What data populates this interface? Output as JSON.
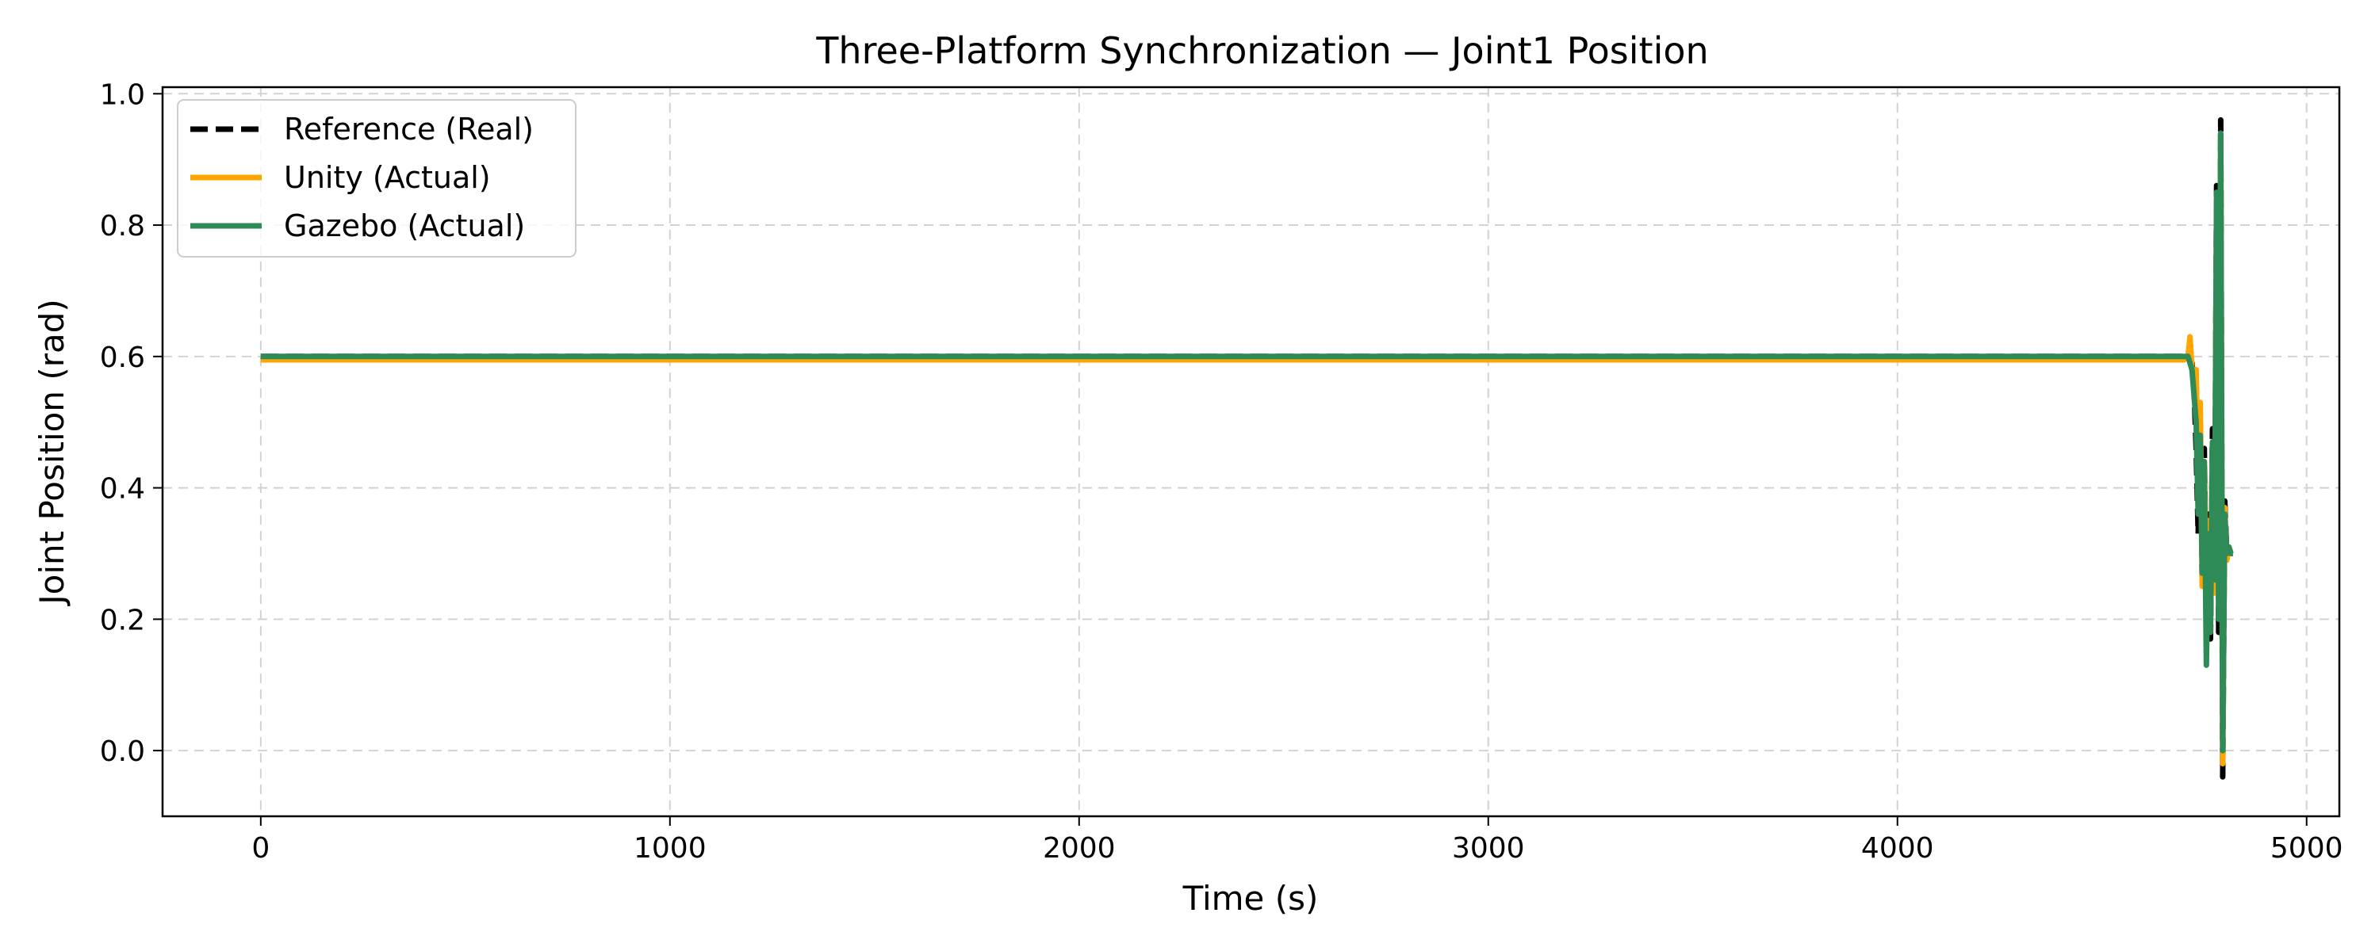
{
  "chart_data": {
    "type": "line",
    "title": "Three-Platform Synchronization — Joint1 Position",
    "xlabel": "Time (s)",
    "ylabel": "Joint Position (rad)",
    "xlim": [
      -240,
      5080
    ],
    "ylim": [
      -0.1,
      1.01
    ],
    "xticks": [
      0,
      1000,
      2000,
      3000,
      4000,
      5000
    ],
    "xtick_labels": [
      "0",
      "1000",
      "2000",
      "3000",
      "4000",
      "5000"
    ],
    "yticks": [
      0.0,
      0.2,
      0.4,
      0.6,
      0.8,
      1.0
    ],
    "ytick_labels": [
      "0.0",
      "0.2",
      "0.4",
      "0.6",
      "0.8",
      "1.0"
    ],
    "grid": true,
    "legend_position": "top-left",
    "series": [
      {
        "name": "Reference (Real)",
        "color": "#000000",
        "style": "dashed",
        "x": [
          0,
          4710,
          4720,
          4725,
          4730,
          4735,
          4740,
          4745,
          4750,
          4755,
          4760,
          4765,
          4770,
          4775,
          4780,
          4785,
          4790,
          4795,
          4800,
          4805,
          4810,
          4815,
          4820
        ],
        "y": [
          0.6,
          0.6,
          0.59,
          0.55,
          0.46,
          0.33,
          0.5,
          0.25,
          0.46,
          0.2,
          0.36,
          0.17,
          0.49,
          0.25,
          0.86,
          0.18,
          0.96,
          -0.04,
          0.38,
          0.3,
          0.31,
          0.3,
          0.3
        ]
      },
      {
        "name": "Unity (Actual)",
        "color": "#FFA500",
        "style": "solid",
        "x": [
          0,
          4700,
          4710,
          4715,
          4720,
          4725,
          4730,
          4735,
          4740,
          4745,
          4750,
          4755,
          4760,
          4765,
          4770,
          4775,
          4780,
          4785,
          4790,
          4795,
          4800,
          4805,
          4810,
          4815,
          4820
        ],
        "y": [
          0.595,
          0.595,
          0.6,
          0.63,
          0.58,
          0.56,
          0.58,
          0.4,
          0.53,
          0.25,
          0.44,
          0.23,
          0.35,
          0.21,
          0.47,
          0.24,
          0.84,
          0.23,
          0.93,
          -0.02,
          0.37,
          0.29,
          0.31,
          0.3,
          0.3
        ]
      },
      {
        "name": "Gazebo (Actual)",
        "color": "#2E8B57",
        "style": "solid",
        "x": [
          0,
          4710,
          4720,
          4725,
          4730,
          4735,
          4740,
          4745,
          4750,
          4755,
          4760,
          4765,
          4770,
          4775,
          4780,
          4785,
          4790,
          4795,
          4800,
          4805,
          4810,
          4815,
          4820
        ],
        "y": [
          0.6,
          0.6,
          0.58,
          0.54,
          0.5,
          0.36,
          0.48,
          0.27,
          0.44,
          0.13,
          0.33,
          0.18,
          0.47,
          0.26,
          0.85,
          0.2,
          0.94,
          0.0,
          0.36,
          0.3,
          0.31,
          0.3,
          0.3
        ]
      }
    ]
  }
}
